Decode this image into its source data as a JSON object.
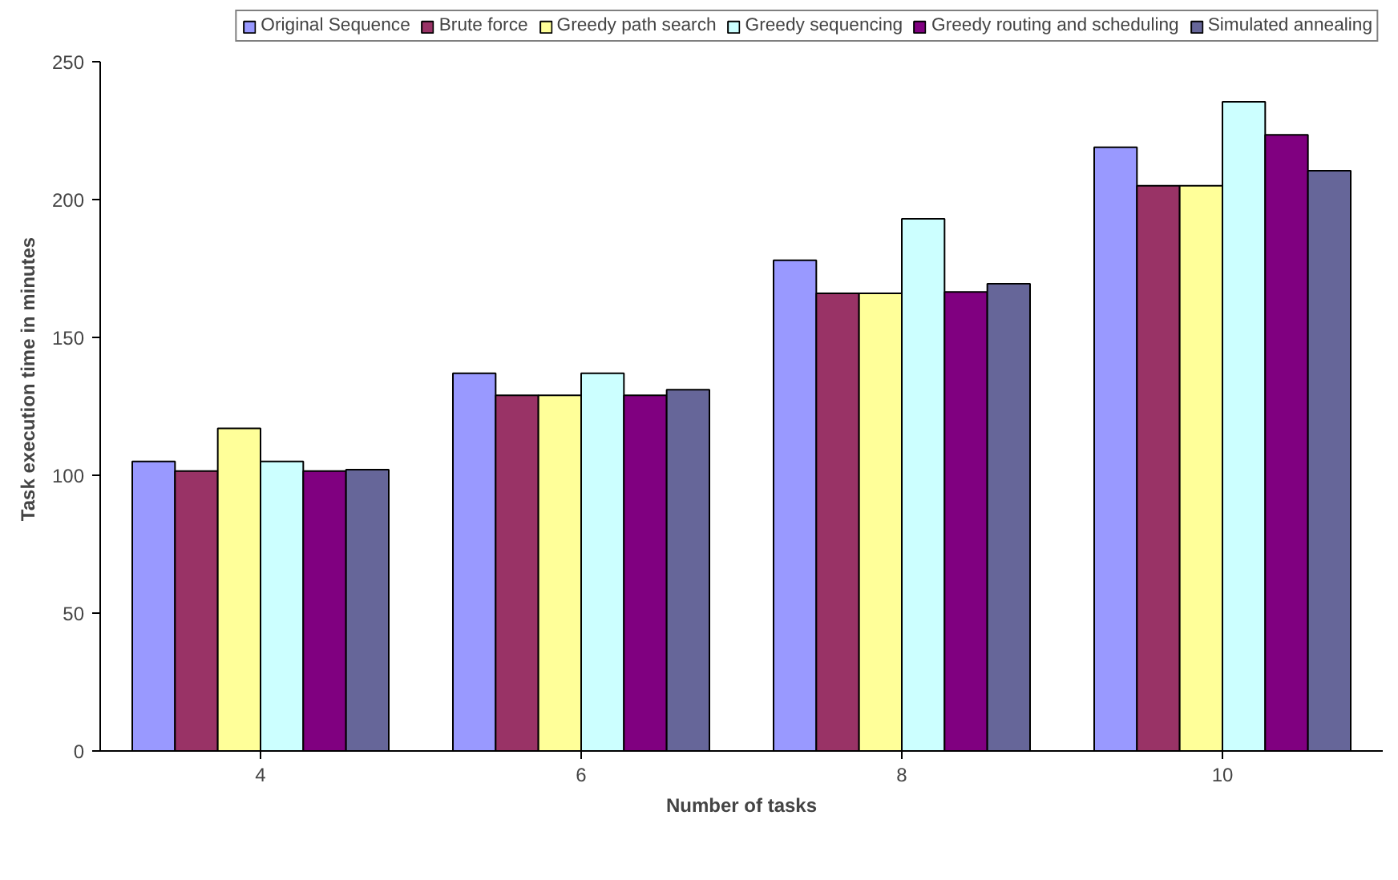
{
  "chart_data": {
    "type": "bar",
    "xlabel": "Number of tasks",
    "ylabel": "Task execution time in minutes",
    "categories": [
      "4",
      "6",
      "8",
      "10"
    ],
    "series": [
      {
        "name": "Original Sequence",
        "color": "#9999ff",
        "values": [
          105,
          137,
          178,
          219
        ]
      },
      {
        "name": "Brute force",
        "color": "#993366",
        "values": [
          101.5,
          129,
          166,
          205
        ]
      },
      {
        "name": "Greedy path search",
        "color": "#ffff99",
        "values": [
          117,
          129,
          166,
          205
        ]
      },
      {
        "name": "Greedy sequencing",
        "color": "#ccffff",
        "values": [
          105,
          137,
          193,
          235.5
        ]
      },
      {
        "name": "Greedy routing and scheduling",
        "color": "#800080",
        "values": [
          101.5,
          129,
          166.5,
          223.5
        ]
      },
      {
        "name": "Simulated annealing",
        "color": "#666699",
        "values": [
          102,
          131,
          169.5,
          210.5
        ]
      }
    ],
    "ylim": [
      0,
      250
    ],
    "yticks": [
      0,
      50,
      100,
      150,
      200,
      250
    ],
    "grid": false,
    "legend": "top"
  }
}
